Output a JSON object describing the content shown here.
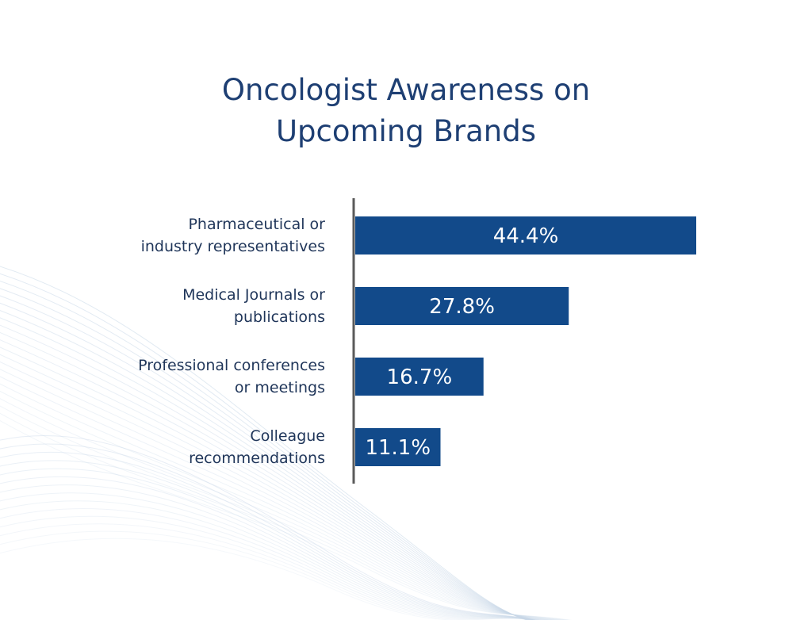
{
  "colors": {
    "bar": "#124a8a",
    "title": "#1e3f73",
    "label": "#1f3559",
    "axis": "#5a5a5a",
    "bar_label": "#ffffff",
    "waves": "#c9d8e8"
  },
  "chart_data": {
    "type": "bar",
    "orientation": "horizontal",
    "title": "Oncologist Awareness on Upcoming Brands",
    "title_lines": [
      "Oncologist Awareness on",
      "Upcoming Brands"
    ],
    "xlabel": "",
    "ylabel": "",
    "categories": [
      "Pharmaceutical or industry representatives",
      "Medical Journals or publications",
      "Professional conferences or meetings",
      "Colleague recommendations"
    ],
    "category_lines": [
      [
        "Pharmaceutical or",
        "industry representatives"
      ],
      [
        "Medical Journals or",
        "publications"
      ],
      [
        "Professional conferences",
        "or meetings"
      ],
      [
        "Colleague",
        "recommendations"
      ]
    ],
    "values": [
      44.4,
      27.8,
      16.7,
      11.1
    ],
    "data_labels": [
      "44.4%",
      "27.8%",
      "16.7%",
      "11.1%"
    ],
    "unit": "%",
    "grid": false,
    "legend": "none"
  }
}
